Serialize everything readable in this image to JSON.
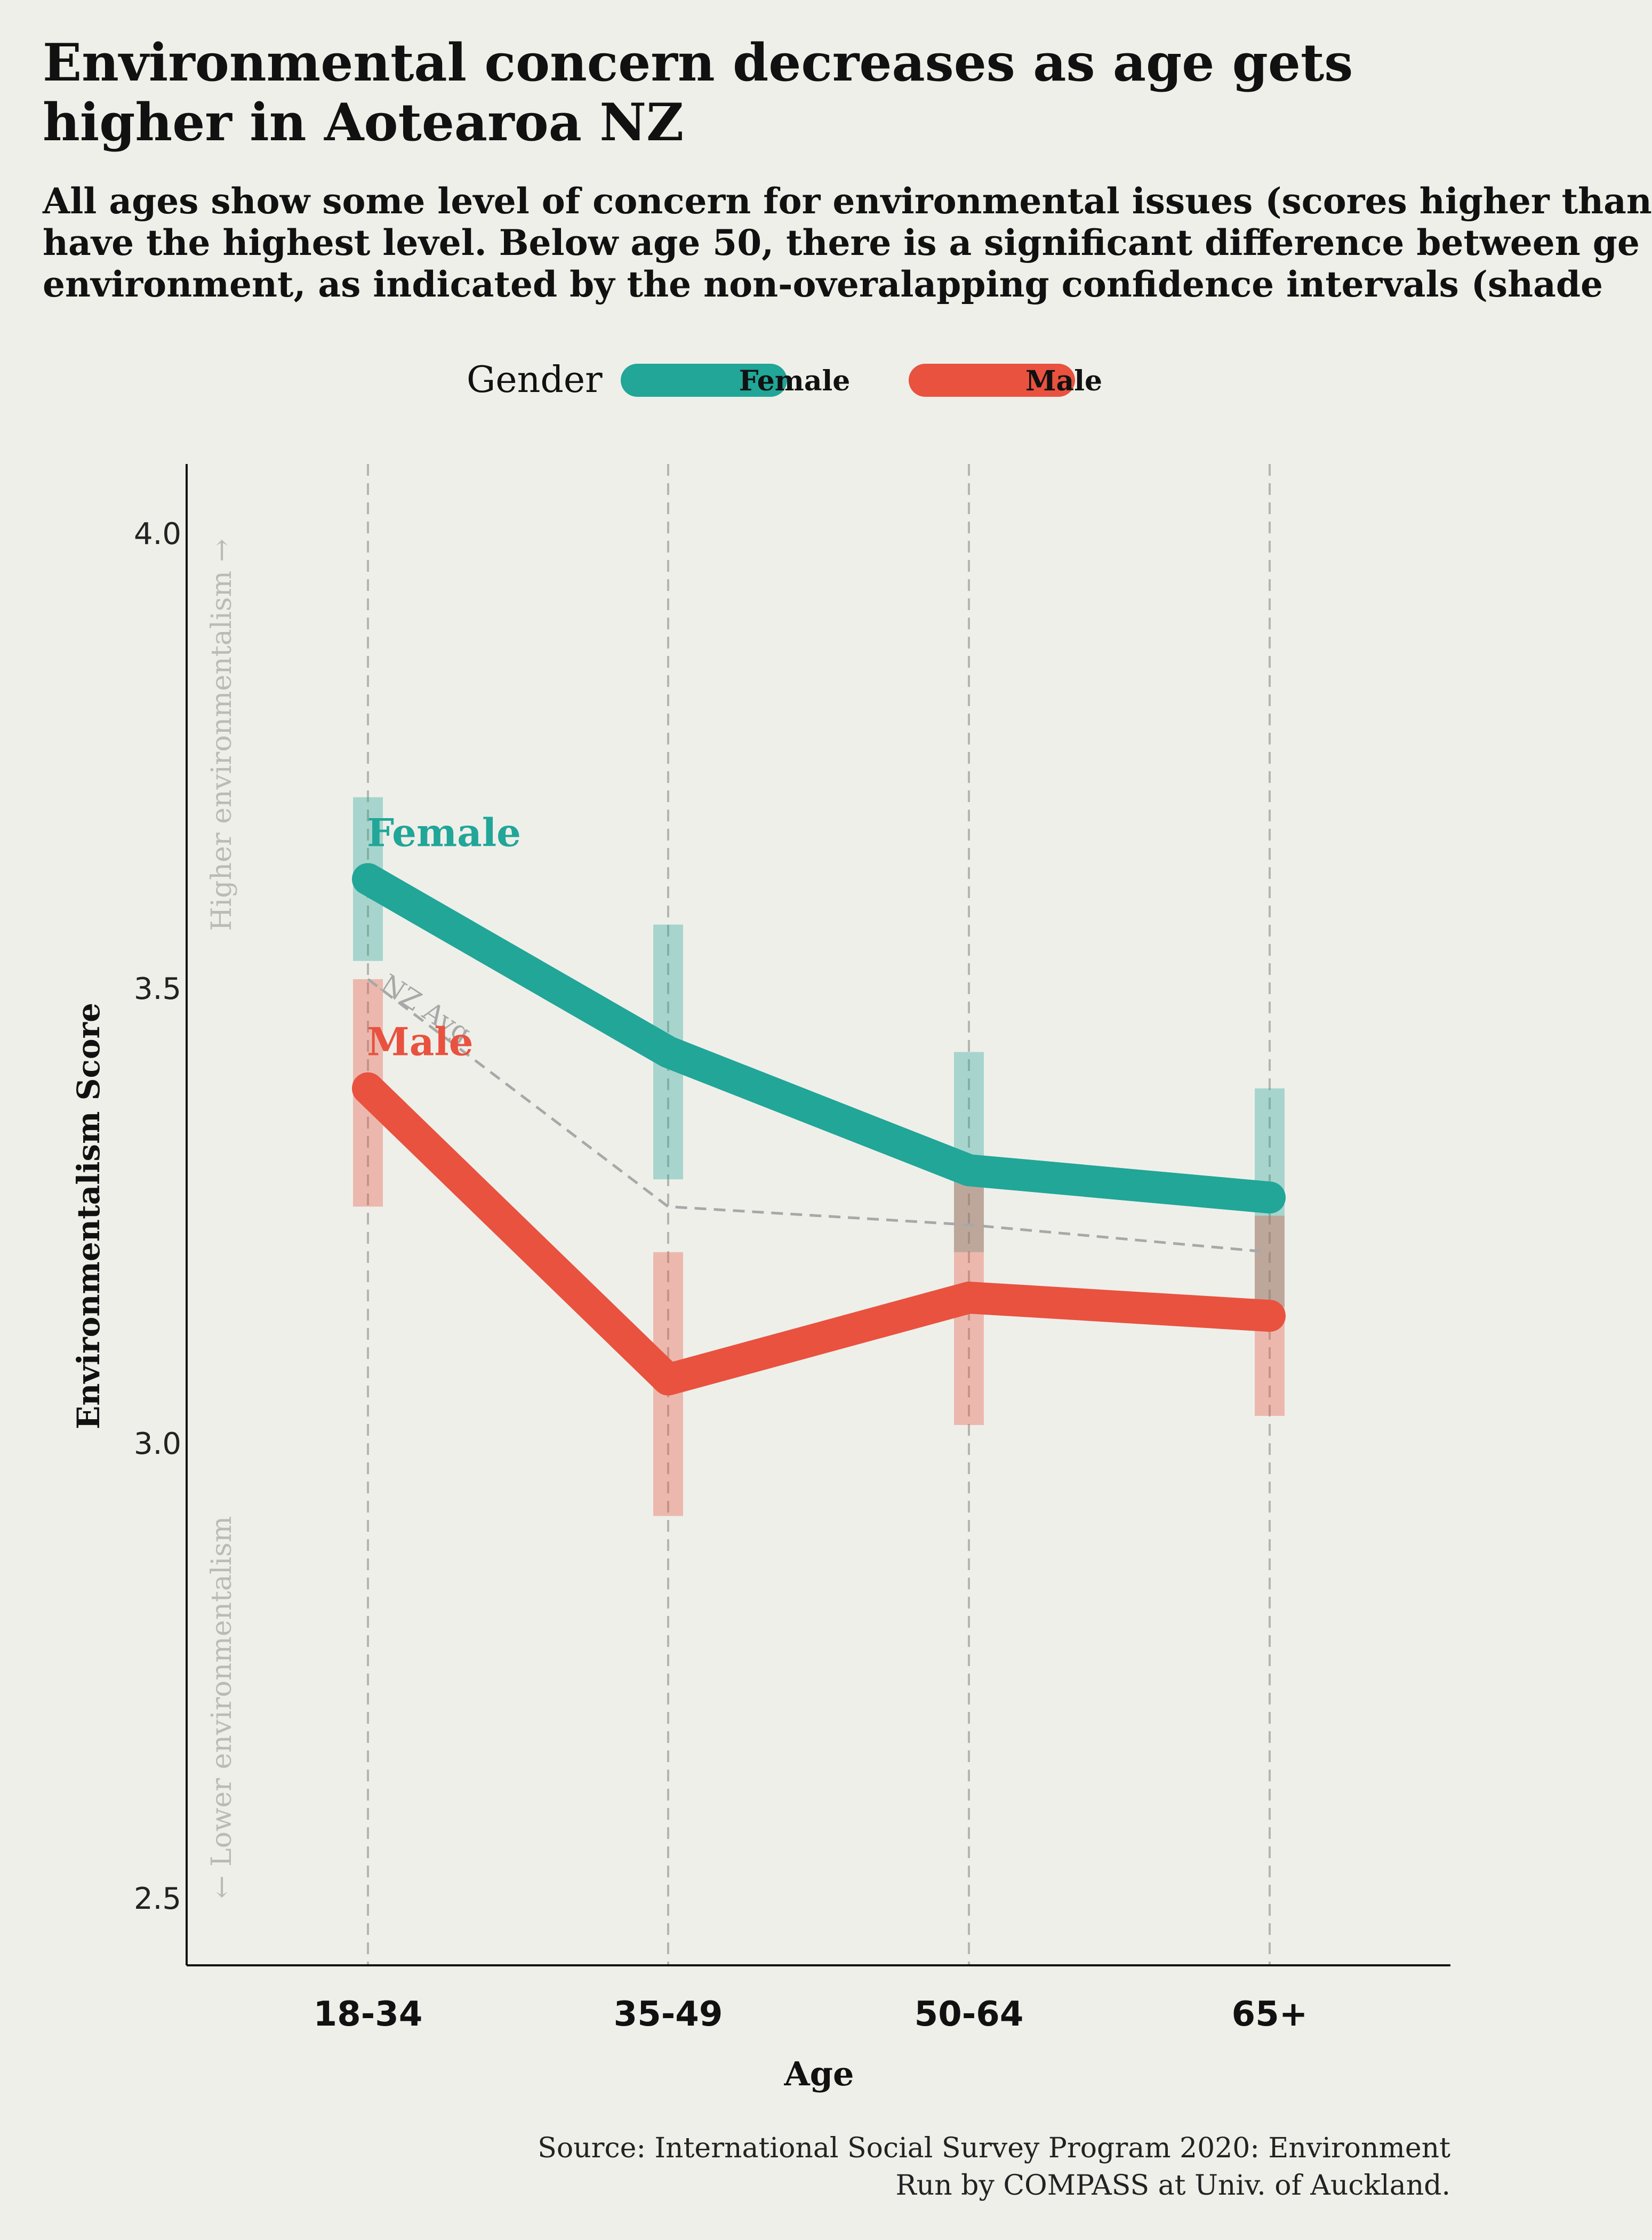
{
  "title": "Environmental concern decreases as age gets higher in Aotearoa NZ",
  "subtitle_lines": [
    "All ages show some level of concern for environmental issues (scores higher than",
    "have the highest level. Below age 50, there is a significant difference between ge",
    "environment, as indicated by the non-overalapping confidence intervals (shade"
  ],
  "legend": {
    "title": "Gender",
    "items": [
      "Female",
      "Male"
    ]
  },
  "source_lines": [
    "Source: International Social Survey Program 2020: Environment",
    "Run by COMPASS at Univ. of Auckland."
  ],
  "colors": {
    "female": "#21a698",
    "male": "#e8523f",
    "avg": "#a8a8a8",
    "background": "#efefea"
  },
  "chart_data": {
    "type": "line",
    "categories": [
      "18-34",
      "35-49",
      "50-64",
      "65+"
    ],
    "xlabel": "Age",
    "ylabel": "Environmentalism Score",
    "ylim": [
      2.43,
      4.08
    ],
    "yticks": [
      2.5,
      3.0,
      3.5,
      4.0
    ],
    "grid": "vertical dashed lines at each category",
    "series": [
      {
        "name": "Female",
        "values": [
          3.62,
          3.43,
          3.3,
          3.27
        ],
        "ci_low": [
          3.53,
          3.29,
          3.21,
          3.15
        ],
        "ci_high": [
          3.71,
          3.57,
          3.43,
          3.39
        ]
      },
      {
        "name": "Male",
        "values": [
          3.39,
          3.07,
          3.16,
          3.14
        ],
        "ci_low": [
          3.26,
          2.92,
          3.02,
          3.03
        ],
        "ci_high": [
          3.51,
          3.21,
          3.29,
          3.25
        ]
      }
    ],
    "reference_line": {
      "name": "NZ Avg.",
      "values": [
        3.51,
        3.26,
        3.24,
        3.21
      ]
    },
    "axis_annotations": {
      "upper": "Higher environmentalism →",
      "lower": "← Lower environmentalism"
    }
  }
}
